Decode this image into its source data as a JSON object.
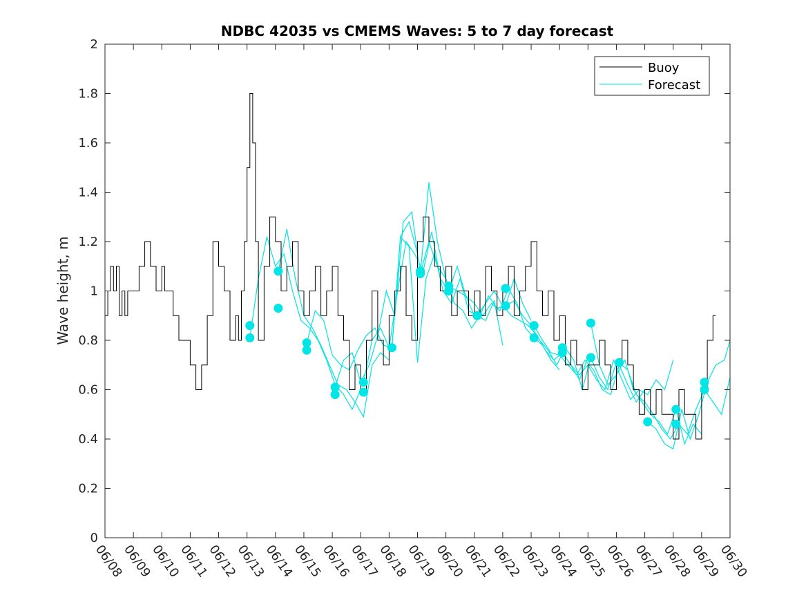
{
  "chart_data": {
    "type": "line",
    "title": "NDBC 42035 vs CMEMS Waves: 5 to 7 day forecast",
    "xlabel": "",
    "ylabel": "Wave height, m",
    "x_ticks": [
      "06/08",
      "06/09",
      "06/10",
      "06/11",
      "06/12",
      "06/13",
      "06/14",
      "06/15",
      "06/16",
      "06/17",
      "06/18",
      "06/19",
      "06/20",
      "06/21",
      "06/22",
      "06/23",
      "06/24",
      "06/25",
      "06/26",
      "06/27",
      "06/28",
      "06/29",
      "06/30"
    ],
    "xlim_days": [
      8,
      30
    ],
    "ylim": [
      0,
      2
    ],
    "y_ticks": [
      0,
      0.2,
      0.4,
      0.6,
      0.8,
      1,
      1.2,
      1.4,
      1.6,
      1.8,
      2
    ],
    "grid": false,
    "legend_position": "top-right",
    "colors": {
      "buoy": "#000000",
      "forecast": "#00e5e5"
    },
    "series": [
      {
        "name": "Buoy",
        "color": "#000000",
        "x": [
          8.0,
          8.1,
          8.2,
          8.3,
          8.4,
          8.5,
          8.6,
          8.7,
          8.8,
          8.9,
          9.0,
          9.2,
          9.4,
          9.6,
          9.8,
          10.0,
          10.1,
          10.2,
          10.4,
          10.6,
          10.8,
          11.0,
          11.2,
          11.4,
          11.6,
          11.8,
          12.0,
          12.2,
          12.4,
          12.6,
          12.7,
          12.8,
          12.9,
          13.0,
          13.1,
          13.2,
          13.3,
          13.4,
          13.6,
          13.8,
          14.0,
          14.2,
          14.4,
          14.6,
          14.8,
          15.0,
          15.2,
          15.4,
          15.6,
          15.8,
          16.0,
          16.2,
          16.4,
          16.6,
          16.8,
          17.0,
          17.2,
          17.4,
          17.6,
          17.8,
          18.0,
          18.2,
          18.4,
          18.6,
          18.8,
          19.0,
          19.2,
          19.4,
          19.6,
          19.8,
          20.0,
          20.2,
          20.4,
          20.6,
          20.8,
          21.0,
          21.2,
          21.4,
          21.6,
          21.8,
          22.0,
          22.2,
          22.4,
          22.6,
          22.8,
          23.0,
          23.2,
          23.4,
          23.6,
          23.8,
          24.0,
          24.2,
          24.4,
          24.6,
          24.8,
          25.0,
          25.2,
          25.4,
          25.6,
          25.8,
          26.0,
          26.2,
          26.4,
          26.6,
          26.8,
          27.0,
          27.2,
          27.4,
          27.6,
          27.8,
          28.0,
          28.2,
          28.4,
          28.6,
          28.8,
          29.0,
          29.2,
          29.4
        ],
        "values": [
          0.9,
          1.0,
          1.1,
          1.0,
          1.1,
          0.9,
          1.0,
          0.9,
          1.0,
          1.0,
          1.0,
          1.1,
          1.2,
          1.1,
          1.0,
          1.1,
          1.0,
          1.0,
          0.9,
          0.8,
          0.8,
          0.7,
          0.6,
          0.7,
          0.9,
          1.2,
          1.1,
          1.0,
          0.8,
          0.9,
          0.8,
          1.0,
          1.2,
          1.5,
          1.8,
          1.6,
          1.2,
          0.8,
          1.1,
          1.3,
          1.2,
          1.0,
          1.1,
          1.2,
          1.0,
          0.9,
          1.0,
          1.1,
          0.9,
          1.0,
          1.1,
          0.9,
          0.8,
          0.6,
          0.7,
          0.6,
          0.8,
          1.0,
          0.8,
          0.7,
          0.9,
          1.0,
          1.1,
          0.9,
          0.8,
          1.2,
          1.3,
          1.2,
          1.1,
          1.0,
          1.1,
          0.9,
          1.0,
          1.0,
          0.9,
          1.0,
          0.9,
          1.1,
          1.0,
          0.9,
          1.0,
          1.1,
          0.9,
          1.0,
          1.1,
          1.2,
          1.0,
          0.9,
          1.0,
          0.8,
          0.9,
          0.7,
          0.8,
          0.7,
          0.6,
          0.7,
          0.7,
          0.8,
          0.7,
          0.6,
          0.7,
          0.8,
          0.7,
          0.6,
          0.5,
          0.6,
          0.5,
          0.6,
          0.5,
          0.5,
          0.4,
          0.6,
          0.5,
          0.5,
          0.4,
          0.6,
          0.8,
          0.9
        ]
      },
      {
        "name": "Forecast",
        "color": "#00e5e5",
        "runs": [
          {
            "x": [
              13.1,
              13.4,
              13.7,
              14.0,
              14.3,
              14.6,
              14.9,
              15.2,
              15.5,
              15.8,
              16.1,
              16.4,
              16.7,
              17.0
            ],
            "values": [
              0.81,
              1.05,
              1.22,
              1.1,
              1.15,
              1.0,
              0.88,
              0.85,
              0.8,
              0.72,
              0.62,
              0.58,
              0.52,
              0.6
            ]
          },
          {
            "x": [
              14.1,
              14.4,
              14.7,
              15.0,
              15.3,
              15.6,
              15.9,
              16.2,
              16.5,
              16.8,
              17.1,
              17.4,
              17.7,
              18.0
            ],
            "values": [
              1.08,
              1.25,
              1.05,
              0.9,
              0.85,
              0.78,
              0.7,
              0.62,
              0.6,
              0.55,
              0.49,
              0.7,
              0.75,
              0.72
            ]
          },
          {
            "x": [
              15.1,
              15.4,
              15.7,
              16.0,
              16.3,
              16.6,
              16.9,
              17.2,
              17.5,
              17.8,
              18.1,
              18.4,
              18.7,
              19.0
            ],
            "values": [
              0.79,
              0.92,
              0.88,
              0.74,
              0.7,
              0.68,
              0.76,
              0.82,
              0.85,
              0.78,
              0.77,
              1.22,
              1.28,
              1.15
            ]
          },
          {
            "x": [
              16.1,
              16.4,
              16.7,
              17.0,
              17.3,
              17.6,
              17.9,
              18.2,
              18.5,
              18.8,
              19.1,
              19.4,
              19.7,
              20.0
            ],
            "values": [
              0.61,
              0.72,
              0.75,
              0.63,
              0.7,
              0.82,
              1.0,
              0.9,
              1.28,
              1.32,
              1.07,
              1.44,
              1.2,
              1.05
            ]
          },
          {
            "x": [
              17.1,
              17.4,
              17.7,
              18.0,
              18.3,
              18.6,
              18.9,
              19.2,
              19.5,
              19.8,
              20.1,
              20.4,
              20.7,
              21.0
            ],
            "values": [
              0.63,
              0.8,
              0.85,
              0.77,
              1.0,
              1.2,
              1.15,
              1.08,
              1.24,
              1.05,
              1.0,
              1.1,
              0.98,
              0.9
            ]
          },
          {
            "x": [
              18.1,
              18.4,
              18.7,
              19.0,
              19.3,
              19.6,
              19.9,
              20.2,
              20.5,
              20.8,
              21.1,
              21.4,
              21.7,
              22.0
            ],
            "values": [
              0.77,
              1.22,
              1.18,
              0.71,
              1.05,
              1.15,
              1.0,
              0.95,
              1.05,
              0.92,
              0.9,
              0.88,
              0.96,
              0.78
            ]
          },
          {
            "x": [
              19.1,
              19.4,
              19.7,
              20.0,
              20.3,
              20.6,
              20.9,
              21.2,
              21.5,
              21.8,
              22.1,
              22.4,
              22.7,
              23.0
            ],
            "values": [
              1.07,
              1.2,
              1.1,
              1.05,
              0.95,
              0.92,
              0.85,
              0.9,
              0.98,
              0.93,
              0.94,
              1.05,
              0.95,
              0.88
            ]
          },
          {
            "x": [
              20.1,
              20.4,
              20.7,
              21.0,
              21.3,
              21.6,
              21.9,
              22.2,
              22.5,
              22.8,
              23.1,
              23.4,
              23.7,
              24.0
            ],
            "values": [
              1.02,
              1.0,
              0.98,
              0.95,
              0.9,
              0.95,
              0.92,
              1.01,
              0.95,
              0.85,
              0.81,
              0.78,
              0.72,
              0.68
            ]
          },
          {
            "x": [
              21.1,
              21.4,
              21.7,
              22.0,
              22.3,
              22.6,
              22.9,
              23.2,
              23.5,
              23.8,
              24.1,
              24.4,
              24.7,
              25.0
            ],
            "values": [
              0.9,
              0.95,
              1.0,
              0.94,
              0.9,
              0.88,
              0.86,
              0.82,
              0.76,
              0.72,
              0.75,
              0.7,
              0.64,
              0.73
            ]
          },
          {
            "x": [
              22.1,
              22.4,
              22.7,
              23.0,
              23.3,
              23.6,
              23.9,
              24.2,
              24.5,
              24.8,
              25.1,
              25.4,
              25.7,
              26.0
            ],
            "values": [
              0.94,
              0.96,
              0.9,
              0.86,
              0.8,
              0.76,
              0.7,
              0.77,
              0.72,
              0.6,
              0.73,
              0.65,
              0.6,
              0.71
            ]
          },
          {
            "x": [
              23.1,
              23.4,
              23.7,
              24.0,
              24.3,
              24.6,
              24.9,
              25.2,
              25.5,
              25.8,
              26.1,
              26.4,
              26.7,
              27.0
            ],
            "values": [
              0.86,
              0.8,
              0.75,
              0.74,
              0.7,
              0.66,
              0.72,
              0.68,
              0.6,
              0.58,
              0.7,
              0.62,
              0.55,
              0.6
            ]
          },
          {
            "x": [
              24.1,
              24.4,
              24.7,
              25.0,
              25.3,
              25.6,
              25.9,
              26.2,
              26.5,
              26.8,
              27.1,
              27.4,
              27.7,
              28.0
            ],
            "values": [
              0.75,
              0.7,
              0.66,
              0.7,
              0.64,
              0.6,
              0.72,
              0.64,
              0.56,
              0.6,
              0.58,
              0.64,
              0.6,
              0.72
            ]
          },
          {
            "x": [
              25.1,
              25.4,
              25.7,
              26.0,
              26.3,
              26.6,
              26.9,
              27.2,
              27.5,
              27.8,
              28.1,
              28.4,
              28.7,
              29.0
            ],
            "values": [
              0.87,
              0.7,
              0.62,
              0.66,
              0.72,
              0.6,
              0.55,
              0.5,
              0.47,
              0.42,
              0.52,
              0.38,
              0.46,
              0.42
            ]
          },
          {
            "x": [
              26.1,
              26.4,
              26.7,
              27.0,
              27.3,
              27.6,
              27.9,
              28.2,
              28.5,
              28.8,
              29.1,
              29.4,
              29.7,
              30.0
            ],
            "values": [
              0.71,
              0.68,
              0.58,
              0.55,
              0.5,
              0.44,
              0.4,
              0.46,
              0.42,
              0.52,
              0.6,
              0.55,
              0.5,
              0.65
            ]
          },
          {
            "x": [
              27.1,
              27.4,
              27.7,
              28.0,
              28.3,
              28.6,
              28.9,
              29.2,
              29.5,
              29.8,
              30.0
            ],
            "values": [
              0.47,
              0.44,
              0.38,
              0.36,
              0.52,
              0.4,
              0.5,
              0.63,
              0.7,
              0.72,
              0.8
            ]
          }
        ],
        "markers": {
          "x": [
            13.1,
            13.1,
            14.1,
            14.1,
            15.1,
            15.1,
            16.1,
            16.1,
            17.1,
            17.1,
            18.1,
            19.1,
            19.1,
            20.1,
            20.1,
            21.1,
            22.1,
            22.1,
            23.1,
            23.1,
            24.1,
            24.1,
            25.1,
            25.1,
            26.1,
            27.1,
            28.1,
            28.1,
            29.1,
            29.1
          ],
          "values": [
            0.86,
            0.81,
            1.08,
            0.93,
            0.79,
            0.76,
            0.61,
            0.58,
            0.63,
            0.59,
            0.77,
            1.08,
            1.07,
            1.02,
            1.0,
            0.9,
            1.01,
            0.94,
            0.86,
            0.81,
            0.77,
            0.75,
            0.87,
            0.73,
            0.71,
            0.47,
            0.52,
            0.46,
            0.63,
            0.6
          ]
        }
      }
    ]
  }
}
